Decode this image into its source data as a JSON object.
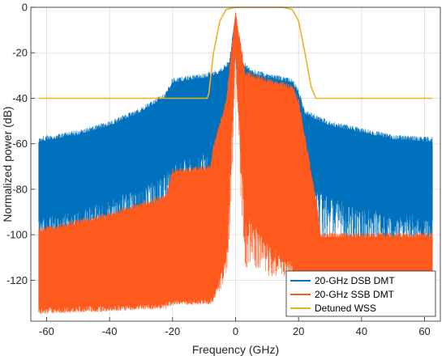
{
  "chart_data": {
    "type": "line",
    "title": "",
    "xlabel": "Frequency (GHz)",
    "ylabel": "Normalized power (dB)",
    "xlim": [
      -65,
      65
    ],
    "ylim": [
      -138,
      0
    ],
    "x_ticks": [
      -60,
      -40,
      -20,
      0,
      20,
      40,
      60
    ],
    "y_ticks": [
      0,
      -20,
      -40,
      -60,
      -80,
      -100,
      -120
    ],
    "grid": true,
    "legend_position": "bottom-right",
    "series": [
      {
        "name": "20-GHz DSB DMT",
        "color": "#0072BD",
        "style": "noise-band",
        "x": [
          -62.5,
          -50,
          -40,
          -30,
          -22,
          -20,
          -10,
          -5,
          -2,
          0,
          2,
          5,
          10,
          18,
          20,
          22,
          30,
          40,
          50,
          62.5
        ],
        "upper": [
          -57,
          -54,
          -50,
          -44,
          -37,
          -31,
          -29,
          -27,
          -23,
          -2,
          -23,
          -27,
          -29,
          -31,
          -36,
          -45,
          -50,
          -53,
          -56,
          -57
        ],
        "lower": [
          -97,
          -94,
          -89,
          -83,
          -78,
          -73,
          -70,
          -67,
          -60,
          -15,
          -60,
          -67,
          -70,
          -73,
          -77,
          -83,
          -88,
          -93,
          -96,
          -97
        ]
      },
      {
        "name": "20-GHz SSB DMT",
        "color": "#FF5A1E",
        "style": "noise-band",
        "x": [
          -62.5,
          -40,
          -22,
          -20,
          -8,
          -7,
          -3,
          0,
          3,
          10,
          18,
          20,
          26,
          27,
          40,
          62.5
        ],
        "upper": [
          -97,
          -90,
          -82,
          -71,
          -69,
          -60,
          -40,
          -1,
          -28,
          -31,
          -34,
          -40,
          -87,
          -99,
          -99,
          -99
        ],
        "lower": [
          -138,
          -138,
          -138,
          -138,
          -138,
          -138,
          -120,
          -18,
          -100,
          -115,
          -125,
          -138,
          -138,
          -138,
          -138,
          -138
        ]
      },
      {
        "name": "Detuned WSS",
        "color": "#EDB120",
        "style": "line",
        "x": [
          -62.5,
          -9,
          -8.5,
          -7,
          -5,
          -3,
          0,
          15,
          18,
          20,
          22,
          24,
          25.5,
          26,
          62.5
        ],
        "y": [
          -40,
          -40,
          -38,
          -20,
          -6,
          -1,
          0,
          0,
          -1,
          -6,
          -20,
          -35,
          -40,
          -40,
          -40
        ]
      }
    ]
  }
}
